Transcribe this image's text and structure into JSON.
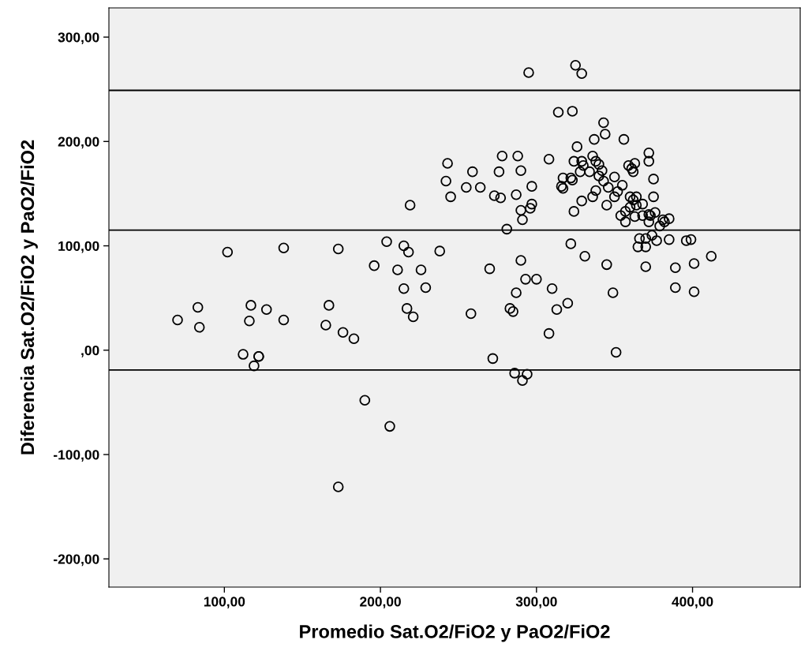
{
  "chart_data": {
    "type": "scatter",
    "xlabel": "Promedio Sat.O2/FiO2 y PaO2/FiO2",
    "ylabel": "Diferencia Sat.O2/FiO2 y PaO2/FiO2",
    "xlim": [
      26,
      469
    ],
    "ylim": [
      -227,
      328
    ],
    "xticks": [
      {
        "value": 100,
        "label": "100,00"
      },
      {
        "value": 200,
        "label": "200,00"
      },
      {
        "value": 300,
        "label": "300,00"
      },
      {
        "value": 400,
        "label": "400,00"
      }
    ],
    "yticks": [
      {
        "value": -200,
        "label": "-200,00"
      },
      {
        "value": -100,
        "label": "-100,00"
      },
      {
        "value": 0,
        "label": ",00"
      },
      {
        "value": 100,
        "label": "100,00"
      },
      {
        "value": 200,
        "label": "200,00"
      },
      {
        "value": 300,
        "label": "300,00"
      }
    ],
    "grid": false,
    "marker": "circle",
    "ref_lines": [
      {
        "axis": "y",
        "value": 249,
        "color": "#000000"
      },
      {
        "axis": "y",
        "value": 115,
        "color": "#000000"
      },
      {
        "axis": "y",
        "value": -19,
        "color": "#000000"
      }
    ],
    "series": [
      {
        "color": "#000000",
        "x": [
          70,
          83,
          84,
          102,
          112,
          117,
          116,
          119,
          122,
          122,
          127,
          138,
          138,
          165,
          167,
          173,
          176,
          183,
          173,
          190,
          206,
          196,
          204,
          211,
          215,
          218,
          215,
          217,
          221,
          219,
          226,
          229,
          238,
          242,
          243,
          245,
          255,
          259,
          264,
          258,
          270,
          272,
          273,
          276,
          277,
          278,
          281,
          283,
          285,
          287,
          286,
          287,
          288,
          290,
          290,
          290,
          291,
          291,
          294,
          293,
          295,
          296,
          297,
          297,
          300,
          308,
          308,
          310,
          313,
          314,
          323,
          325,
          329,
          320,
          351,
          343,
          344,
          337,
          356,
          326,
          324,
          329,
          330,
          336,
          338,
          340,
          342,
          334,
          328,
          317,
          322,
          323,
          316,
          317,
          340,
          343,
          346,
          350,
          355,
          352,
          350,
          338,
          336,
          329,
          324,
          345,
          359,
          363,
          361,
          362,
          372,
          372,
          375,
          360,
          364,
          375,
          362,
          368,
          364,
          360,
          357,
          354,
          357,
          363,
          368,
          372,
          373,
          376,
          372,
          381,
          385,
          382,
          379,
          366,
          370,
          374,
          377,
          365,
          370,
          385,
          396,
          399,
          412,
          401,
          389,
          370,
          389,
          401,
          345,
          331,
          322,
          349
        ],
        "values": [
          29,
          41,
          22,
          94,
          -4,
          43,
          28,
          -15,
          -6,
          -6,
          39,
          98,
          29,
          24,
          43,
          97,
          17,
          11,
          -131,
          -48,
          -73,
          81,
          104,
          77,
          100,
          94,
          59,
          40,
          32,
          139,
          77,
          60,
          95,
          162,
          179,
          147,
          156,
          171,
          156,
          35,
          78,
          -8,
          148,
          171,
          146,
          186,
          116,
          40,
          37,
          55,
          -22,
          149,
          186,
          172,
          134,
          86,
          125,
          -29,
          -23,
          68,
          266,
          136,
          140,
          157,
          68,
          183,
          16,
          59,
          39,
          228,
          229,
          273,
          265,
          45,
          -2,
          218,
          207,
          202,
          202,
          195,
          181,
          181,
          177,
          186,
          181,
          178,
          172,
          171,
          171,
          165,
          165,
          163,
          157,
          155,
          167,
          162,
          156,
          166,
          158,
          152,
          147,
          153,
          147,
          143,
          133,
          139,
          177,
          179,
          174,
          171,
          189,
          181,
          164,
          147,
          147,
          147,
          144,
          140,
          139,
          137,
          133,
          129,
          123,
          128,
          129,
          130,
          129,
          132,
          123,
          125,
          126,
          123,
          119,
          107,
          107,
          110,
          105,
          99,
          99,
          106,
          105,
          106,
          90,
          83,
          79,
          80,
          60,
          56,
          82,
          90,
          102,
          55
        ]
      }
    ]
  }
}
